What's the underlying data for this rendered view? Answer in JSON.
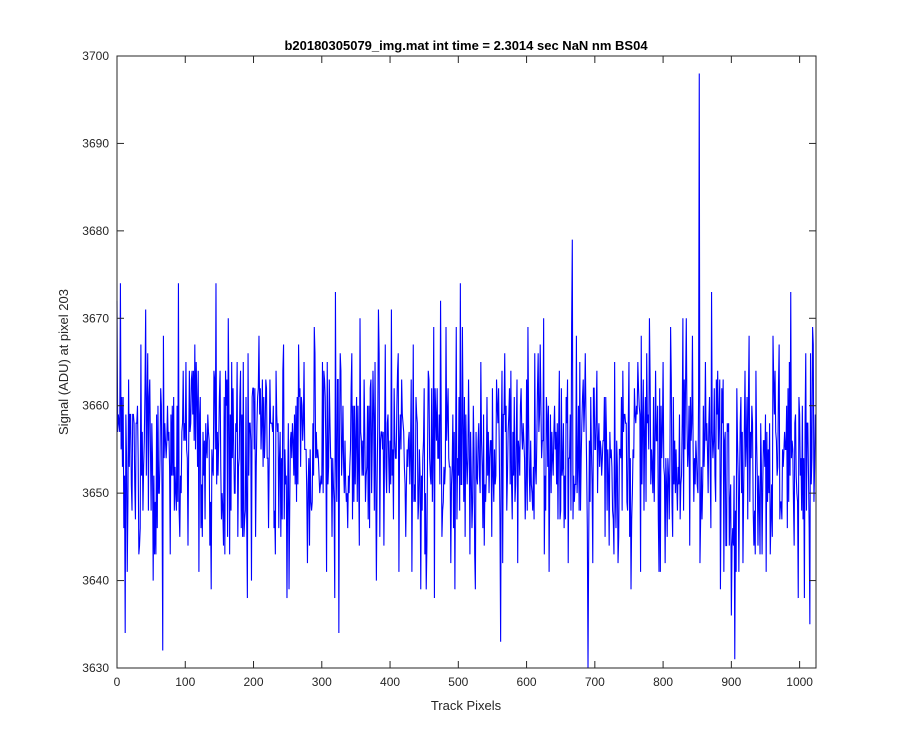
{
  "chart_data": {
    "type": "line",
    "title": "b20180305079_img.mat int time = 2.3014 sec  NaN nm BS04",
    "xlabel": "Track Pixels",
    "ylabel": "Signal (ADU) at pixel 203",
    "xlim": [
      0,
      1024
    ],
    "ylim": [
      3630,
      3700
    ],
    "xticks": [
      0,
      100,
      200,
      300,
      400,
      500,
      600,
      700,
      800,
      900,
      1000
    ],
    "yticks": [
      3630,
      3640,
      3650,
      3660,
      3670,
      3680,
      3690,
      3700
    ],
    "grid": false,
    "legend": "none",
    "line_color": "#0000ff",
    "series_points": 1024,
    "signal_mean": 3655,
    "signal_spread": 7,
    "notable_points": [
      {
        "x": 5,
        "y": 3674
      },
      {
        "x": 12,
        "y": 3634
      },
      {
        "x": 67,
        "y": 3632
      },
      {
        "x": 90,
        "y": 3674
      },
      {
        "x": 145,
        "y": 3674
      },
      {
        "x": 320,
        "y": 3673
      },
      {
        "x": 325,
        "y": 3634
      },
      {
        "x": 562,
        "y": 3633
      },
      {
        "x": 667,
        "y": 3679
      },
      {
        "x": 690,
        "y": 3630
      },
      {
        "x": 853,
        "y": 3698
      },
      {
        "x": 905,
        "y": 3631
      },
      {
        "x": 1015,
        "y": 3635
      },
      {
        "x": 1020,
        "y": 3667
      }
    ]
  }
}
